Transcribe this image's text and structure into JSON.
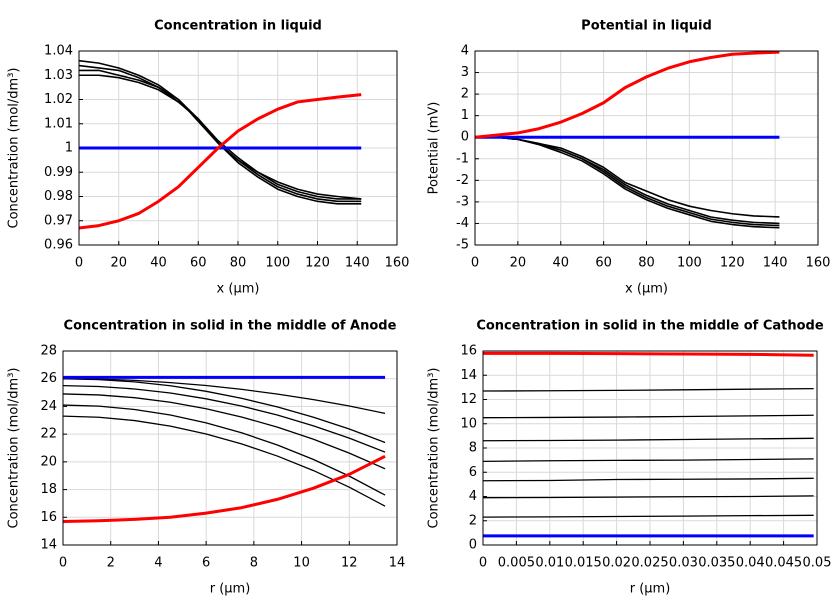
{
  "chart_data": [
    {
      "type": "line",
      "title": "Concentration in liquid",
      "xlabel": "x (µm)",
      "ylabel": "Concentration (mol/dm³)",
      "xlim": [
        0,
        160
      ],
      "xticks": [
        0,
        20,
        40,
        60,
        80,
        100,
        120,
        140,
        160
      ],
      "ylim": [
        0.96,
        1.04
      ],
      "yticks": [
        0.96,
        0.97,
        0.98,
        0.99,
        1,
        1.01,
        1.02,
        1.03,
        1.04
      ],
      "grid": true,
      "x": [
        0,
        10,
        20,
        30,
        40,
        50,
        60,
        70,
        80,
        90,
        100,
        110,
        120,
        130,
        142
      ],
      "series": [
        {
          "color": "#000000",
          "line_width": 1.6,
          "values": [
            1.036,
            1.035,
            1.033,
            1.03,
            1.026,
            1.02,
            1.011,
            1.002,
            0.994,
            0.988,
            0.983,
            0.98,
            0.978,
            0.977,
            0.977
          ]
        },
        {
          "color": "#000000",
          "line_width": 1.6,
          "values": [
            1.034,
            1.033,
            1.032,
            1.029,
            1.025,
            1.02,
            1.012,
            1.002,
            0.995,
            0.989,
            0.984,
            0.981,
            0.979,
            0.978,
            0.978
          ]
        },
        {
          "color": "#000000",
          "line_width": 1.6,
          "values": [
            1.032,
            1.032,
            1.03,
            1.028,
            1.025,
            1.019,
            1.012,
            1.002,
            0.995,
            0.99,
            0.985,
            0.982,
            0.98,
            0.979,
            0.979
          ]
        },
        {
          "color": "#000000",
          "line_width": 1.6,
          "values": [
            1.03,
            1.03,
            1.029,
            1.027,
            1.024,
            1.019,
            1.012,
            1.003,
            0.996,
            0.99,
            0.986,
            0.983,
            0.981,
            0.98,
            0.979
          ]
        },
        {
          "color": "#0000ff",
          "line_width": 3,
          "values": [
            1,
            1,
            1,
            1,
            1,
            1,
            1,
            1,
            1,
            1,
            1,
            1,
            1,
            1,
            1
          ]
        },
        {
          "color": "#ff0000",
          "line_width": 3,
          "values": [
            0.967,
            0.968,
            0.97,
            0.973,
            0.978,
            0.984,
            0.992,
            1.0,
            1.007,
            1.012,
            1.016,
            1.019,
            1.02,
            1.021,
            1.022
          ]
        }
      ]
    },
    {
      "type": "line",
      "title": "Potential in liquid",
      "xlabel": "x (µm)",
      "ylabel": "Potential (mV)",
      "xlim": [
        0,
        160
      ],
      "xticks": [
        0,
        20,
        40,
        60,
        80,
        100,
        120,
        140,
        160
      ],
      "ylim": [
        -5,
        4
      ],
      "yticks": [
        -5,
        -4,
        -3,
        -2,
        -1,
        0,
        1,
        2,
        3,
        4
      ],
      "grid": true,
      "x": [
        0,
        10,
        20,
        30,
        40,
        50,
        60,
        70,
        80,
        90,
        100,
        110,
        120,
        130,
        142
      ],
      "series": [
        {
          "color": "#000000",
          "line_width": 1.6,
          "values": [
            0,
            0,
            -0.1,
            -0.3,
            -0.5,
            -0.9,
            -1.4,
            -2.1,
            -2.5,
            -2.9,
            -3.2,
            -3.4,
            -3.55,
            -3.65,
            -3.7
          ]
        },
        {
          "color": "#000000",
          "line_width": 1.6,
          "values": [
            0,
            0,
            -0.1,
            -0.3,
            -0.6,
            -1.0,
            -1.5,
            -2.2,
            -2.7,
            -3.1,
            -3.4,
            -3.7,
            -3.85,
            -3.95,
            -4.0
          ]
        },
        {
          "color": "#000000",
          "line_width": 1.6,
          "values": [
            0,
            0,
            -0.1,
            -0.3,
            -0.6,
            -1.0,
            -1.6,
            -2.3,
            -2.8,
            -3.2,
            -3.5,
            -3.8,
            -3.95,
            -4.05,
            -4.1
          ]
        },
        {
          "color": "#000000",
          "line_width": 1.6,
          "values": [
            0,
            0,
            -0.1,
            -0.35,
            -0.7,
            -1.1,
            -1.7,
            -2.4,
            -2.9,
            -3.3,
            -3.6,
            -3.9,
            -4.05,
            -4.15,
            -4.2
          ]
        },
        {
          "color": "#0000ff",
          "line_width": 3,
          "values": [
            0,
            0,
            0,
            0,
            0,
            0,
            0,
            0,
            0,
            0,
            0,
            0,
            0,
            0,
            0
          ]
        },
        {
          "color": "#ff0000",
          "line_width": 3,
          "values": [
            0,
            0.1,
            0.2,
            0.4,
            0.7,
            1.1,
            1.6,
            2.3,
            2.8,
            3.2,
            3.5,
            3.7,
            3.85,
            3.9,
            3.95
          ]
        }
      ]
    },
    {
      "type": "line",
      "title": "Concentration in solid in the middle of Anode",
      "xlabel": "r (µm)",
      "ylabel": "Concentration (mol/dm³)",
      "xlim": [
        0,
        14
      ],
      "xticks": [
        0,
        2,
        4,
        6,
        8,
        10,
        12,
        14
      ],
      "ylim": [
        14,
        28
      ],
      "yticks": [
        14,
        16,
        18,
        20,
        22,
        24,
        26,
        28
      ],
      "grid": true,
      "x": [
        0,
        1.5,
        3,
        4.5,
        6,
        7.5,
        9,
        10.5,
        12,
        13.5
      ],
      "series": [
        {
          "color": "#000000",
          "line_width": 1.3,
          "values": [
            26.0,
            25.97,
            25.88,
            25.72,
            25.51,
            25.23,
            24.89,
            24.49,
            24.03,
            23.5
          ]
        },
        {
          "color": "#000000",
          "line_width": 1.3,
          "values": [
            26.0,
            25.94,
            25.77,
            25.49,
            25.09,
            24.58,
            23.96,
            23.22,
            22.37,
            21.4
          ]
        },
        {
          "color": "#000000",
          "line_width": 1.3,
          "values": [
            25.5,
            25.44,
            25.26,
            24.97,
            24.55,
            24.02,
            23.37,
            22.6,
            21.71,
            20.7
          ]
        },
        {
          "color": "#000000",
          "line_width": 1.3,
          "values": [
            24.9,
            24.83,
            24.63,
            24.3,
            23.83,
            23.23,
            22.5,
            21.63,
            20.63,
            19.5
          ]
        },
        {
          "color": "#000000",
          "line_width": 1.3,
          "values": [
            24.1,
            24.02,
            23.78,
            23.38,
            22.81,
            22.09,
            21.21,
            20.17,
            18.97,
            17.6
          ]
        },
        {
          "color": "#000000",
          "line_width": 1.3,
          "values": [
            23.3,
            23.22,
            22.98,
            22.58,
            22.01,
            21.29,
            20.41,
            19.37,
            18.17,
            16.8
          ]
        },
        {
          "color": "#0000ff",
          "line_width": 3,
          "values": [
            26.1,
            26.1,
            26.1,
            26.1,
            26.1,
            26.1,
            26.1,
            26.1,
            26.1,
            26.1
          ]
        },
        {
          "color": "#ff0000",
          "line_width": 3,
          "values": [
            15.7,
            15.75,
            15.85,
            16.0,
            16.3,
            16.7,
            17.3,
            18.1,
            19.1,
            20.4
          ]
        }
      ]
    },
    {
      "type": "line",
      "title": "Concentration in solid in the middle of Cathode",
      "xlabel": "r (µm)",
      "ylabel": "Concentration (mol/dm³)",
      "xlim": [
        0,
        0.05
      ],
      "xticks": [
        0,
        0.005,
        0.01,
        0.015,
        0.02,
        0.025,
        0.03,
        0.035,
        0.04,
        0.045,
        0.05
      ],
      "ylim": [
        0,
        16
      ],
      "yticks": [
        0,
        2,
        4,
        6,
        8,
        10,
        12,
        14,
        16
      ],
      "grid": true,
      "x": [
        0,
        0.01,
        0.02,
        0.03,
        0.04,
        0.0495
      ],
      "series": [
        {
          "color": "#000000",
          "line_width": 1.3,
          "values": [
            12.7,
            12.72,
            12.75,
            12.8,
            12.85,
            12.9
          ]
        },
        {
          "color": "#000000",
          "line_width": 1.3,
          "values": [
            10.5,
            10.52,
            10.55,
            10.6,
            10.65,
            10.7
          ]
        },
        {
          "color": "#000000",
          "line_width": 1.3,
          "values": [
            8.6,
            8.62,
            8.65,
            8.7,
            8.75,
            8.8
          ]
        },
        {
          "color": "#000000",
          "line_width": 1.3,
          "values": [
            6.9,
            6.95,
            6.98,
            7.0,
            7.05,
            7.1
          ]
        },
        {
          "color": "#000000",
          "line_width": 1.3,
          "values": [
            5.3,
            5.32,
            5.4,
            5.42,
            5.45,
            5.5
          ]
        },
        {
          "color": "#000000",
          "line_width": 1.3,
          "values": [
            3.9,
            3.92,
            3.95,
            3.98,
            4.0,
            4.05
          ]
        },
        {
          "color": "#000000",
          "line_width": 1.3,
          "values": [
            2.3,
            2.32,
            2.35,
            2.38,
            2.42,
            2.45
          ]
        },
        {
          "color": "#0000ff",
          "line_width": 3,
          "values": [
            0.75,
            0.75,
            0.75,
            0.75,
            0.75,
            0.75
          ]
        },
        {
          "color": "#ff0000",
          "line_width": 3,
          "values": [
            15.8,
            15.8,
            15.78,
            15.75,
            15.72,
            15.65
          ]
        }
      ]
    }
  ]
}
